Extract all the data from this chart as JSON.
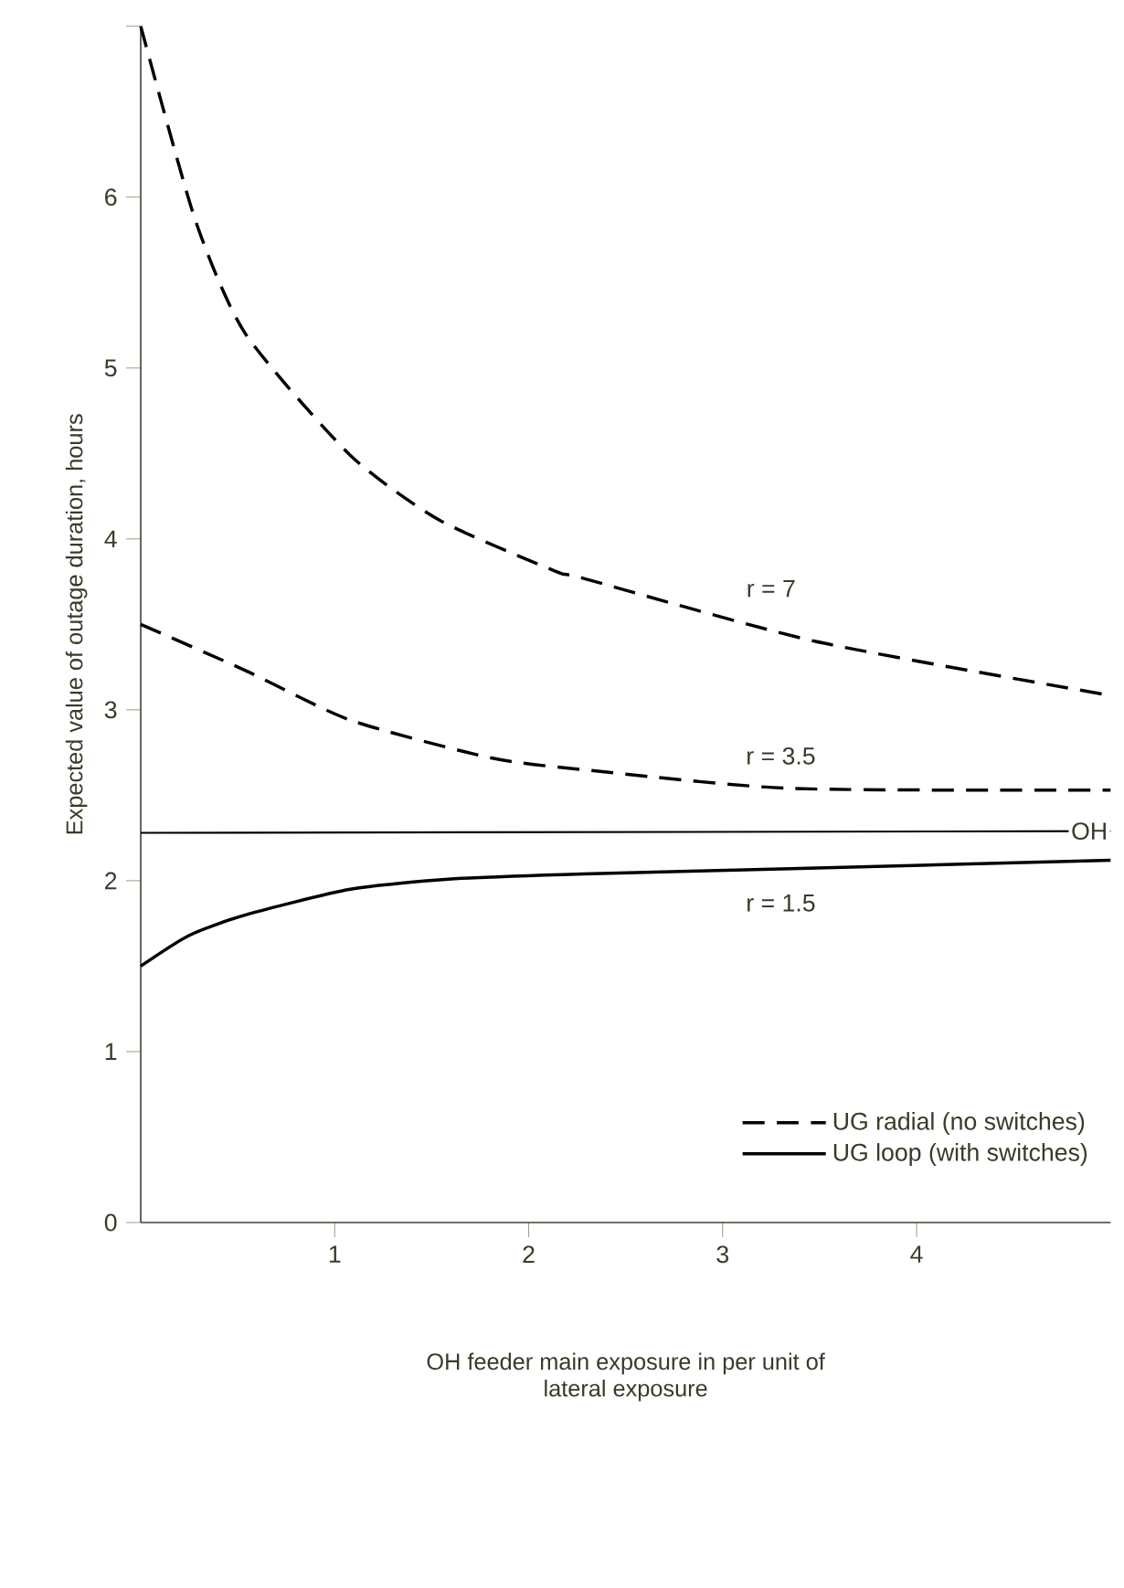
{
  "chart_data": {
    "type": "line",
    "xlabel": "OH feeder main exposure in per unit of lateral exposure",
    "ylabel": "Expected value of outage duration, hours",
    "xlim": [
      0,
      5
    ],
    "ylim": [
      0,
      7
    ],
    "xticks": [
      1,
      2,
      3,
      4
    ],
    "yticks": [
      0,
      1,
      2,
      3,
      4,
      5,
      6,
      {
        "value": 7,
        "label": null
      }
    ],
    "marker": "none",
    "legend": "bottom right",
    "grid": false,
    "series": [
      {
        "name": "UG radial (no switches)",
        "color": "#000000",
        "line_style": "dashed",
        "x": [
          0,
          0.28,
          0.54,
          1.08,
          1.54,
          2.14,
          2.28,
          3.48,
          4.97
        ],
        "values": [
          7,
          5.87,
          5.2,
          4.49,
          4.11,
          3.81,
          3.77,
          3.4,
          3.09
        ]
      },
      {
        "color": "#000000",
        "line_style": "dashed",
        "x": [
          0,
          0.54,
          1.08,
          1.8,
          2.28,
          3.35,
          5
        ],
        "values": [
          3.5,
          3.23,
          2.94,
          2.72,
          2.65,
          2.54,
          2.53
        ]
      },
      {
        "name": "OH",
        "color": "#000000",
        "line_style": "solid",
        "x": [
          0,
          5
        ],
        "values": [
          2.28,
          2.29
        ]
      },
      {
        "name": "UG loop (with switches)",
        "color": "#000000",
        "line_style": "solid",
        "x": [
          0,
          0.25,
          0.54,
          1.08,
          1.6,
          2.28,
          3.35,
          5
        ],
        "values": [
          1.5,
          1.68,
          1.8,
          1.95,
          2.01,
          2.04,
          2.07,
          2.12
        ]
      }
    ],
    "annotations": [
      "r = 7",
      "r = 3.5",
      "r = 1.5"
    ]
  }
}
